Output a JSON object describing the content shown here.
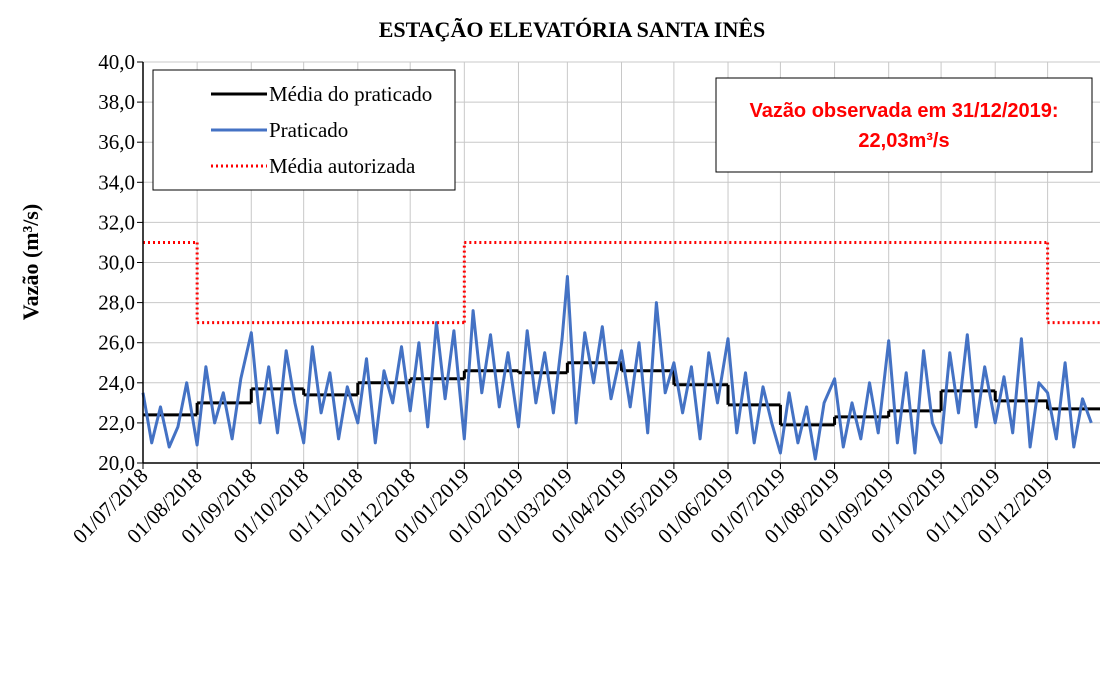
{
  "chart_data": {
    "type": "line",
    "title": "ESTAÇÃO ELEVATÓRIA SANTA INÊS",
    "y_label": "Vazão (m³/s)",
    "xlim": [
      "01/07/2018",
      "31/12/2019"
    ],
    "xticks": [
      "01/07/2018",
      "01/08/2018",
      "01/09/2018",
      "01/10/2018",
      "01/11/2018",
      "01/12/2018",
      "01/01/2019",
      "01/02/2019",
      "01/03/2019",
      "01/04/2019",
      "01/05/2019",
      "01/06/2019",
      "01/07/2019",
      "01/08/2019",
      "01/09/2019",
      "01/10/2019",
      "01/11/2019",
      "01/12/2019"
    ],
    "ylim": [
      20,
      40
    ],
    "yticks": [
      {
        "value": 20,
        "label": "20,0"
      },
      {
        "value": 22,
        "label": "22,0"
      },
      {
        "value": 24,
        "label": "24,0"
      },
      {
        "value": 26,
        "label": "26,0"
      },
      {
        "value": 28,
        "label": "28,0"
      },
      {
        "value": 30,
        "label": "30,0"
      },
      {
        "value": 32,
        "label": "32,0"
      },
      {
        "value": 34,
        "label": "34,0"
      },
      {
        "value": 36,
        "label": "36,0"
      },
      {
        "value": 38,
        "label": "38,0"
      },
      {
        "value": 40,
        "label": "40,0"
      }
    ],
    "grid": true,
    "legend": "upper left",
    "annotation": [
      "Vazão observada em 31/12/2019:",
      "22,03m³/s"
    ],
    "annotation_color": "#ff0000",
    "series": [
      {
        "name": "Média do praticado",
        "color": "#000000",
        "style": "step",
        "x": [
          "01/07/2018",
          "01/08/2018",
          "01/09/2018",
          "01/10/2018",
          "01/11/2018",
          "01/12/2018",
          "01/01/2019",
          "01/02/2019",
          "01/03/2019",
          "01/04/2019",
          "01/05/2019",
          "01/06/2019",
          "01/07/2019",
          "01/08/2019",
          "01/09/2019",
          "01/10/2019",
          "01/11/2019",
          "01/12/2019"
        ],
        "values": [
          22.4,
          23.0,
          23.7,
          23.4,
          24.0,
          24.2,
          24.6,
          24.5,
          25.0,
          24.6,
          23.9,
          22.9,
          21.9,
          22.3,
          22.6,
          23.6,
          23.1,
          22.7
        ]
      },
      {
        "name": "Praticado",
        "color": "#4472c4",
        "style": "line",
        "x": [
          "01/07/2018",
          "06/07/2018",
          "11/07/2018",
          "16/07/2018",
          "21/07/2018",
          "26/07/2018",
          "01/08/2018",
          "06/08/2018",
          "11/08/2018",
          "16/08/2018",
          "21/08/2018",
          "26/08/2018",
          "01/09/2018",
          "06/09/2018",
          "11/09/2018",
          "16/09/2018",
          "21/09/2018",
          "26/09/2018",
          "01/10/2018",
          "06/10/2018",
          "11/10/2018",
          "16/10/2018",
          "21/10/2018",
          "26/10/2018",
          "01/11/2018",
          "06/11/2018",
          "11/11/2018",
          "16/11/2018",
          "21/11/2018",
          "26/11/2018",
          "01/12/2018",
          "06/12/2018",
          "11/12/2018",
          "16/12/2018",
          "21/12/2018",
          "26/12/2018",
          "01/01/2019",
          "06/01/2019",
          "11/01/2019",
          "16/01/2019",
          "21/01/2019",
          "26/01/2019",
          "01/02/2019",
          "06/02/2019",
          "11/02/2019",
          "16/02/2019",
          "21/02/2019",
          "26/02/2019",
          "01/03/2019",
          "06/03/2019",
          "11/03/2019",
          "16/03/2019",
          "21/03/2019",
          "26/03/2019",
          "01/04/2019",
          "06/04/2019",
          "11/04/2019",
          "16/04/2019",
          "21/04/2019",
          "26/04/2019",
          "01/05/2019",
          "06/05/2019",
          "11/05/2019",
          "16/05/2019",
          "21/05/2019",
          "26/05/2019",
          "01/06/2019",
          "06/06/2019",
          "11/06/2019",
          "16/06/2019",
          "21/06/2019",
          "26/06/2019",
          "01/07/2019",
          "06/07/2019",
          "11/07/2019",
          "16/07/2019",
          "21/07/2019",
          "26/07/2019",
          "01/08/2019",
          "06/08/2019",
          "11/08/2019",
          "16/08/2019",
          "21/08/2019",
          "26/08/2019",
          "01/09/2019",
          "06/09/2019",
          "11/09/2019",
          "16/09/2019",
          "21/09/2019",
          "26/09/2019",
          "01/10/2019",
          "06/10/2019",
          "11/10/2019",
          "16/10/2019",
          "21/10/2019",
          "26/10/2019",
          "01/11/2019",
          "06/11/2019",
          "11/11/2019",
          "16/11/2019",
          "21/11/2019",
          "26/11/2019",
          "01/12/2019",
          "06/12/2019",
          "11/12/2019",
          "16/12/2019",
          "21/12/2019",
          "26/12/2019"
        ],
        "values": [
          23.5,
          21.0,
          22.8,
          20.8,
          21.8,
          24.0,
          20.9,
          24.8,
          22.0,
          23.5,
          21.2,
          24.2,
          26.5,
          22.0,
          24.8,
          21.5,
          25.6,
          23.0,
          21.0,
          25.8,
          22.5,
          24.5,
          21.2,
          23.8,
          22.0,
          25.2,
          21.0,
          24.6,
          23.0,
          25.8,
          22.6,
          26.0,
          21.8,
          27.0,
          23.2,
          26.6,
          21.2,
          27.6,
          23.5,
          26.4,
          22.8,
          25.5,
          21.8,
          26.6,
          23.0,
          25.5,
          22.5,
          26.2,
          29.3,
          22.0,
          26.5,
          24.0,
          26.8,
          23.2,
          25.6,
          22.8,
          26.0,
          21.5,
          28.0,
          23.5,
          25.0,
          22.5,
          24.8,
          21.2,
          25.5,
          23.0,
          26.2,
          21.5,
          24.5,
          21.0,
          23.8,
          22.0,
          20.5,
          23.5,
          21.0,
          22.8,
          20.2,
          23.0,
          24.2,
          20.8,
          23.0,
          21.2,
          24.0,
          21.5,
          26.1,
          21.0,
          24.5,
          20.5,
          25.6,
          22.0,
          21.0,
          25.5,
          22.5,
          26.4,
          21.8,
          24.8,
          22.0,
          24.3,
          21.5,
          26.2,
          20.8,
          24.0,
          23.5,
          21.2,
          25.0,
          20.8,
          23.2,
          22.0
        ]
      },
      {
        "name": "Média autorizada",
        "color": "#ff0000",
        "style": "dotted-step",
        "x": [
          "01/07/2018",
          "01/08/2018",
          "01/01/2019",
          "01/12/2019"
        ],
        "values": [
          31,
          27,
          31,
          27
        ]
      }
    ]
  }
}
